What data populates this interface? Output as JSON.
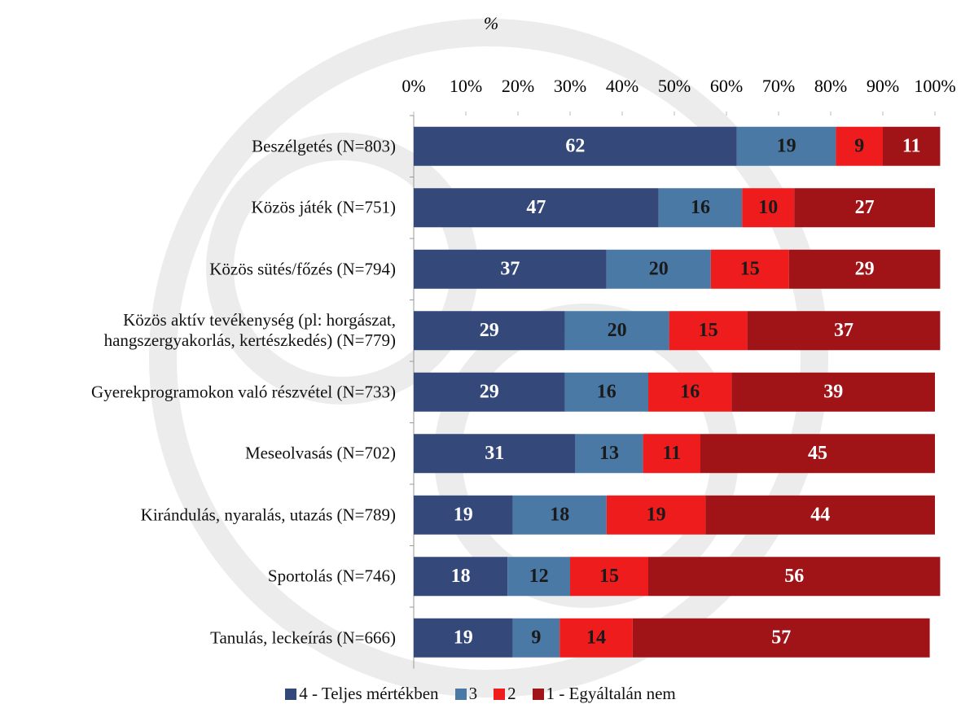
{
  "chart_data": {
    "type": "stacked-bar-horizontal",
    "title": "%",
    "categories": [
      "Beszélgetés (N=803)",
      "Közös játék (N=751)",
      "Közös sütés/főzés (N=794)",
      "Közös aktív tevékenység (pl: horgászat,\nhangszergyakorlás, kertészkedés) (N=779)",
      "Gyerekprogramokon való részvétel (N=733)",
      "Meseolvasás (N=702)",
      "Kirándulás, nyaralás, utazás (N=789)",
      "Sportolás (N=746)",
      "Tanulás, leckeírás (N=666)"
    ],
    "series": [
      {
        "name": "4 - Teljes mértékben",
        "color": "#34497a",
        "label_color": "#ffffff",
        "values": [
          62,
          47,
          37,
          29,
          29,
          31,
          19,
          18,
          19
        ]
      },
      {
        "name": "3",
        "color": "#4a79a5",
        "label_color": "#1a1a1a",
        "values": [
          19,
          16,
          20,
          20,
          16,
          13,
          18,
          12,
          9
        ]
      },
      {
        "name": "2",
        "color": "#ee1c1c",
        "label_color": "#1a1a1a",
        "values": [
          9,
          10,
          15,
          15,
          16,
          11,
          19,
          15,
          14
        ]
      },
      {
        "name": "1 - Egyáltalán nem",
        "color": "#a01418",
        "label_color": "#ffffff",
        "values": [
          11,
          27,
          29,
          37,
          39,
          45,
          44,
          56,
          57
        ]
      }
    ],
    "xlim": [
      0,
      100
    ],
    "xticks": [
      {
        "value": 0,
        "label": "0%"
      },
      {
        "value": 10,
        "label": "10%"
      },
      {
        "value": 20,
        "label": "20%"
      },
      {
        "value": 30,
        "label": "30%"
      },
      {
        "value": 40,
        "label": "40%"
      },
      {
        "value": 50,
        "label": "50%"
      },
      {
        "value": 60,
        "label": "60%"
      },
      {
        "value": 70,
        "label": "70%"
      },
      {
        "value": 80,
        "label": "80%"
      },
      {
        "value": 90,
        "label": "90%"
      },
      {
        "value": 100,
        "label": "100%"
      }
    ],
    "legend": "bottom"
  }
}
